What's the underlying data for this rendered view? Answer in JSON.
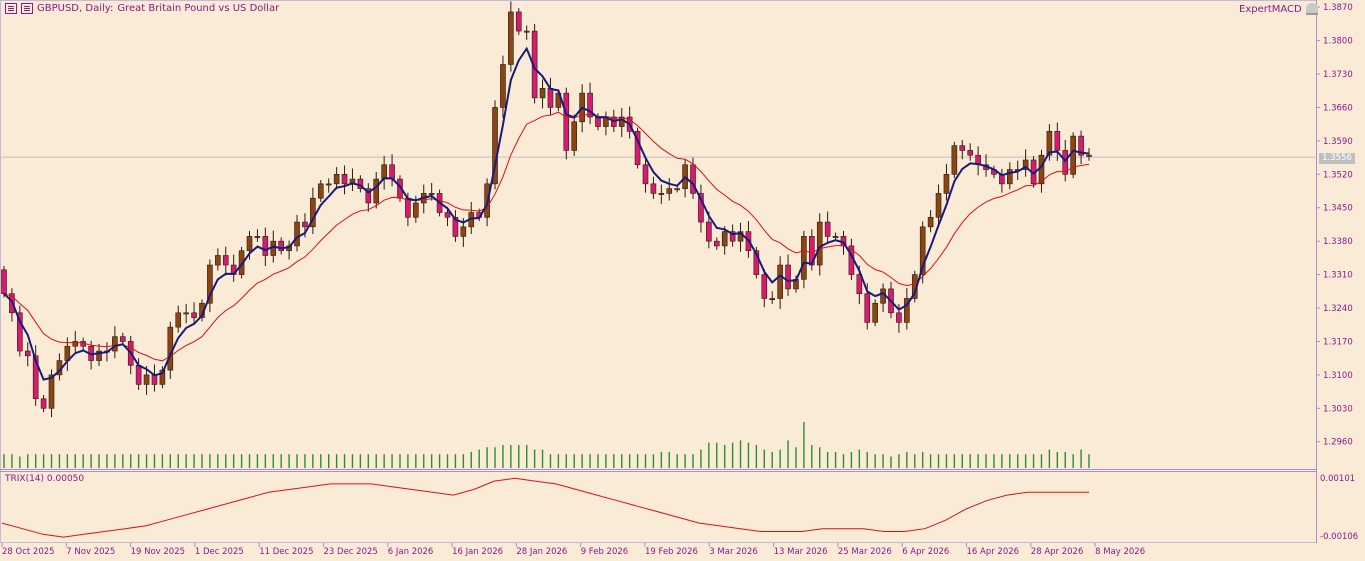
{
  "header": {
    "symbol_label": "GBPUSD, Daily:",
    "description": "Great Britain Pound vs US Dollar",
    "expert": "ExpertMACD"
  },
  "price_axis": {
    "ticks": [
      "1.3870",
      "1.3800",
      "1.3730",
      "1.3660",
      "1.3590",
      "1.3520",
      "1.3450",
      "1.3380",
      "1.3310",
      "1.3240",
      "1.3170",
      "1.3100",
      "1.3030",
      "1.2960"
    ],
    "current_price": "1.3556"
  },
  "indicator": {
    "label": "TRIX(14) 0.00050",
    "ticks": [
      "0.00101",
      "-0.00106"
    ]
  },
  "time_axis": {
    "labels": [
      "28 Oct 2025",
      "7 Nov 2025",
      "19 Nov 2025",
      "1 Dec 2025",
      "11 Dec 2025",
      "23 Dec 2025",
      "6 Jan 2026",
      "16 Jan 2026",
      "28 Jan 2026",
      "9 Feb 2026",
      "19 Feb 2026",
      "3 Mar 2026",
      "13 Mar 2026",
      "25 Mar 2026",
      "6 Apr 2026",
      "16 Apr 2026",
      "28 Apr 2026",
      "8 May 2026"
    ]
  },
  "colors": {
    "background": "#FAEBD7",
    "bull_candle": "#8B4513",
    "bear_candle": "#D81B70",
    "fast_ma": "#1A1A7A",
    "slow_ma": "#E01010",
    "volume": "#2E8B2E",
    "trix": "#E01010",
    "axis_text": "#8B1A8B"
  },
  "chart_data": {
    "type": "candlestick",
    "symbol": "GBPUSD",
    "timeframe": "Daily",
    "y_range": [
      1.2905,
      1.3885
    ],
    "candles": {
      "open": [
        1.332,
        1.327,
        1.323,
        1.315,
        1.314,
        1.305,
        1.303,
        1.31,
        1.313,
        1.316,
        1.317,
        1.316,
        1.313,
        1.315,
        1.315,
        1.318,
        1.317,
        1.312,
        1.308,
        1.31,
        1.308,
        1.311,
        1.32,
        1.323,
        1.323,
        1.322,
        1.325,
        1.333,
        1.335,
        1.333,
        1.331,
        1.336,
        1.339,
        1.339,
        1.335,
        1.338,
        1.336,
        1.337,
        1.342,
        1.341,
        1.347,
        1.35,
        1.35,
        1.352,
        1.35,
        1.351,
        1.349,
        1.346,
        1.351,
        1.354,
        1.351,
        1.347,
        1.343,
        1.346,
        1.348,
        1.348,
        1.344,
        1.343,
        1.339,
        1.341,
        1.344,
        1.343,
        1.35,
        1.366,
        1.375,
        1.386,
        1.382,
        1.382,
        1.368,
        1.37,
        1.366,
        1.369,
        1.357,
        1.363,
        1.369,
        1.364,
        1.362,
        1.364,
        1.362,
        1.364,
        1.361,
        1.354,
        1.35,
        1.348,
        1.348,
        1.349,
        1.349,
        1.354,
        1.348,
        1.342,
        1.338,
        1.337,
        1.34,
        1.338,
        1.34,
        1.336,
        1.331,
        1.326,
        1.326,
        1.333,
        1.328,
        1.33,
        1.339,
        1.333,
        1.342,
        1.339,
        1.339,
        1.337,
        1.331,
        1.327,
        1.321,
        1.325,
        1.328,
        1.323,
        1.321,
        1.326,
        1.331,
        1.341,
        1.343,
        1.348,
        1.352,
        1.358,
        1.357,
        1.356,
        1.354,
        1.353,
        1.352,
        1.35,
        1.353,
        1.353,
        1.355,
        1.35,
        1.356,
        1.361,
        1.357,
        1.352,
        1.36,
        1.356
      ],
      "close": [
        1.327,
        1.323,
        1.315,
        1.314,
        1.305,
        1.303,
        1.31,
        1.313,
        1.316,
        1.317,
        1.316,
        1.313,
        1.315,
        1.315,
        1.318,
        1.317,
        1.312,
        1.308,
        1.31,
        1.308,
        1.311,
        1.32,
        1.323,
        1.323,
        1.322,
        1.325,
        1.333,
        1.335,
        1.333,
        1.331,
        1.336,
        1.339,
        1.339,
        1.335,
        1.338,
        1.336,
        1.337,
        1.342,
        1.341,
        1.347,
        1.35,
        1.35,
        1.352,
        1.35,
        1.351,
        1.349,
        1.346,
        1.351,
        1.354,
        1.351,
        1.347,
        1.343,
        1.346,
        1.348,
        1.348,
        1.344,
        1.343,
        1.339,
        1.341,
        1.344,
        1.343,
        1.35,
        1.366,
        1.375,
        1.386,
        1.382,
        1.382,
        1.368,
        1.37,
        1.366,
        1.369,
        1.357,
        1.363,
        1.369,
        1.364,
        1.362,
        1.364,
        1.362,
        1.364,
        1.361,
        1.354,
        1.35,
        1.348,
        1.348,
        1.349,
        1.349,
        1.354,
        1.348,
        1.342,
        1.338,
        1.337,
        1.34,
        1.338,
        1.34,
        1.336,
        1.331,
        1.326,
        1.326,
        1.333,
        1.328,
        1.33,
        1.339,
        1.333,
        1.342,
        1.339,
        1.339,
        1.337,
        1.331,
        1.327,
        1.321,
        1.325,
        1.328,
        1.323,
        1.321,
        1.326,
        1.331,
        1.341,
        1.343,
        1.348,
        1.352,
        1.358,
        1.357,
        1.356,
        1.354,
        1.353,
        1.352,
        1.35,
        1.353,
        1.353,
        1.355,
        1.35,
        1.356,
        1.361,
        1.357,
        1.352,
        1.36,
        1.356,
        1.356
      ]
    },
    "volume_relative": [
      0.3,
      0.3,
      0.25,
      0.3,
      0.3,
      0.3,
      0.3,
      0.3,
      0.3,
      0.3,
      0.3,
      0.3,
      0.3,
      0.3,
      0.3,
      0.3,
      0.3,
      0.3,
      0.3,
      0.3,
      0.3,
      0.3,
      0.3,
      0.3,
      0.3,
      0.3,
      0.3,
      0.3,
      0.3,
      0.3,
      0.3,
      0.3,
      0.3,
      0.3,
      0.3,
      0.3,
      0.3,
      0.3,
      0.3,
      0.3,
      0.3,
      0.3,
      0.3,
      0.3,
      0.3,
      0.3,
      0.3,
      0.3,
      0.3,
      0.3,
      0.3,
      0.3,
      0.3,
      0.3,
      0.3,
      0.3,
      0.3,
      0.3,
      0.3,
      0.35,
      0.4,
      0.45,
      0.45,
      0.5,
      0.5,
      0.5,
      0.5,
      0.4,
      0.4,
      0.3,
      0.3,
      0.3,
      0.3,
      0.3,
      0.3,
      0.3,
      0.3,
      0.3,
      0.3,
      0.3,
      0.3,
      0.3,
      0.3,
      0.35,
      0.35,
      0.3,
      0.3,
      0.3,
      0.4,
      0.55,
      0.55,
      0.5,
      0.55,
      0.6,
      0.55,
      0.5,
      0.4,
      0.35,
      0.4,
      0.6,
      0.45,
      1.0,
      0.5,
      0.45,
      0.35,
      0.35,
      0.3,
      0.35,
      0.4,
      0.35,
      0.3,
      0.3,
      0.25,
      0.3,
      0.35,
      0.3,
      0.35,
      0.3,
      0.3,
      0.3,
      0.3,
      0.3,
      0.3,
      0.3,
      0.3,
      0.3,
      0.3,
      0.3,
      0.3,
      0.3,
      0.3,
      0.3,
      0.4,
      0.35,
      0.35,
      0.3,
      0.4,
      0.3,
      0.3,
      0.3
    ],
    "trix": {
      "name": "TRIX(14)",
      "range": [
        -0.00106,
        0.00101
      ],
      "values": [
        -0.0006,
        -0.0008,
        -0.001,
        -0.0011,
        -0.001,
        -0.0009,
        -0.0008,
        -0.0007,
        -0.0005,
        -0.0003,
        -0.0001,
        0.0001,
        0.0003,
        0.0005,
        0.0006,
        0.0007,
        0.0008,
        0.0008,
        0.0008,
        0.0007,
        0.0006,
        0.0005,
        0.0004,
        0.0006,
        0.0009,
        0.001,
        0.0009,
        0.0008,
        0.0006,
        0.0004,
        0.0002,
        0.0,
        -0.0002,
        -0.0004,
        -0.0006,
        -0.0007,
        -0.0008,
        -0.0009,
        -0.0009,
        -0.0009,
        -0.0008,
        -0.0008,
        -0.0008,
        -0.0009,
        -0.0009,
        -0.0008,
        -0.0005,
        -0.0001,
        0.0002,
        0.0004,
        0.0005,
        0.0005,
        0.0005,
        0.0005
      ]
    }
  }
}
